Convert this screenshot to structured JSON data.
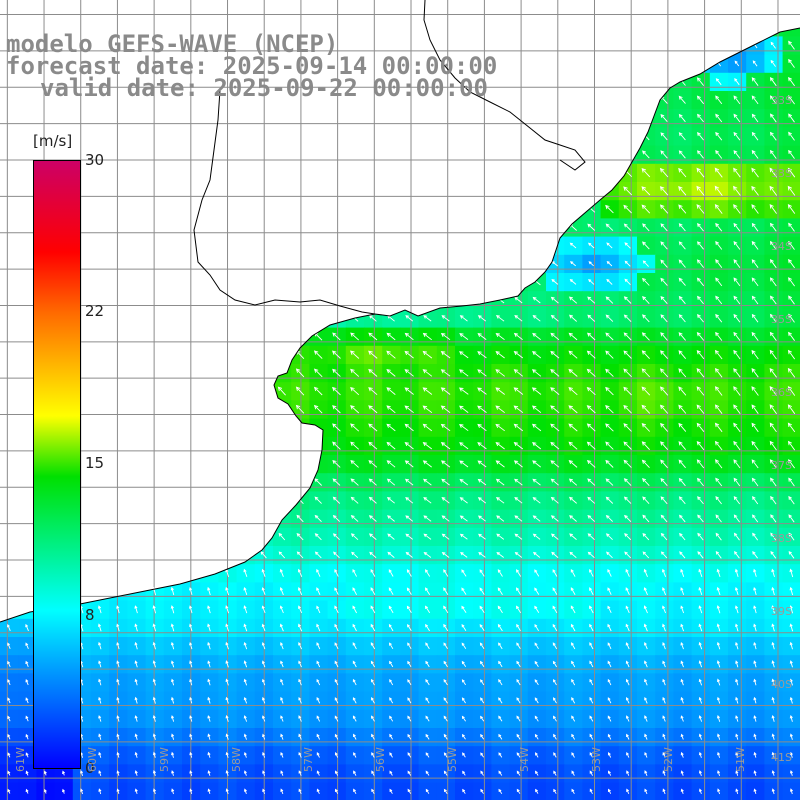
{
  "title": {
    "line1": "modelo GEFS-WAVE (NCEP)",
    "line2": "forecast date: 2025-09-14 00:00:00",
    "line3": "valid date: 2025-09-22 00:00:00"
  },
  "colorbar": {
    "unit": "[m/s]",
    "ticks": [
      "30",
      "22",
      "15",
      "8",
      "0"
    ],
    "tick_values": [
      30,
      22,
      15,
      8,
      0
    ],
    "min": 0,
    "max": 30,
    "colors": [
      "#0000ff",
      "#0090ff",
      "#00ffff",
      "#00e000",
      "#ffff00",
      "#ff6a00",
      "#ff0000",
      "#cc0066"
    ]
  },
  "map": {
    "lat_labels": [
      "33S",
      "34S",
      "35S",
      "36S",
      "37S",
      "38S",
      "39S",
      "40S",
      "41S"
    ],
    "lon_labels": [
      "61W",
      "60W",
      "59W",
      "58W",
      "57W",
      "56W",
      "55W",
      "54W",
      "53W",
      "52W",
      "51W"
    ],
    "lat_label_values": [
      -33,
      -34,
      -35,
      -36,
      -37,
      -38,
      -39,
      -40,
      -41
    ],
    "lon_label_values": [
      -61,
      -60,
      -59,
      -58,
      -57,
      -56,
      -55,
      -54,
      -53,
      -52,
      -51
    ],
    "extent": {
      "lon_min": -61.1,
      "lon_max": -50.2,
      "lat_min": -41.3,
      "lat_max": -30.3
    },
    "land_color": "#ffffff",
    "grid_color": "#8c8c8c",
    "coast_color": "#000000",
    "arrow_color": "#ffffff"
  }
}
